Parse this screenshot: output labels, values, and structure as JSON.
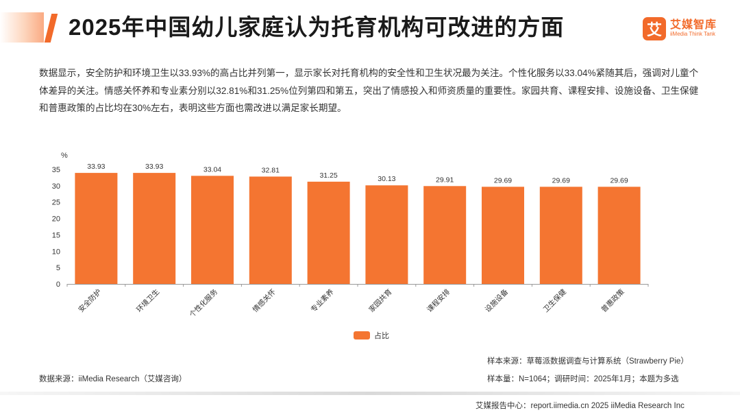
{
  "header": {
    "title": "2025年中国幼儿家庭认为托育机构可改进的方面",
    "brand_logo_char": "艾",
    "brand_name": "艾媒智库",
    "brand_en": "iiMedia Think Tank"
  },
  "summary": "数据显示，安全防护和环境卫生以33.93%的高占比并列第一，显示家长对托育机构的安全性和卫生状况最为关注。个性化服务以33.04%紧随其后，强调对儿童个体差异的关注。情感关怀养和专业素分别以32.81%和31.25%位列第四和第五，突出了情感投入和师资质量的重要性。家园共育、课程安排、设施设备、卫生保健和普惠政策的占比均在30%左右，表明这些方面也需改进以满足家长期望。",
  "chart_data": {
    "type": "bar",
    "unit_label": "%",
    "categories": [
      "安全防护",
      "环境卫生",
      "个性化服务",
      "情感关怀",
      "专业素养",
      "家园共育",
      "课程安排",
      "设施设备",
      "卫生保健",
      "普惠政策"
    ],
    "series": [
      {
        "name": "占比",
        "values": [
          33.93,
          33.93,
          33.04,
          32.81,
          31.25,
          30.13,
          29.91,
          29.69,
          29.69,
          29.69
        ]
      }
    ],
    "value_labels": [
      "33.93",
      "33.93",
      "33.04",
      "32.81",
      "31.25",
      "30.13",
      "29.91",
      "29.69",
      "29.69",
      "29.69"
    ],
    "yticks": [
      0,
      5,
      10,
      15,
      20,
      25,
      30,
      35
    ],
    "ylim": [
      0,
      35
    ],
    "legend": "bottom-center",
    "bar_color": "#f47531"
  },
  "legend_label": "占比",
  "source_note": "数据来源：iiMedia Research（艾媒咨询）",
  "sample_source": "样本来源：草莓派数据调查与计算系统（Strawberry Pie）",
  "sample_size": "样本量：N=1064；调研时间：2025年1月；本题为多选",
  "footer": "艾媒报告中心：report.iimedia.cn  2025 iiMedia Research Inc"
}
